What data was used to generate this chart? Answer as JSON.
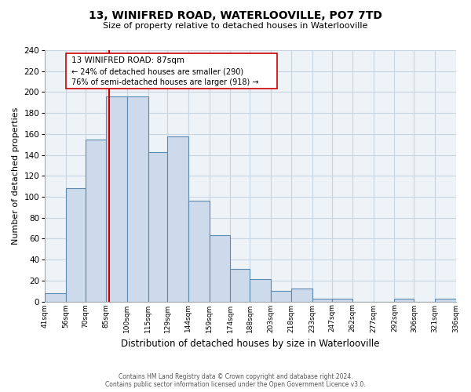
{
  "title": "13, WINIFRED ROAD, WATERLOOVILLE, PO7 7TD",
  "subtitle": "Size of property relative to detached houses in Waterlooville",
  "xlabel": "Distribution of detached houses by size in Waterlooville",
  "ylabel": "Number of detached properties",
  "bin_labels": [
    "41sqm",
    "56sqm",
    "70sqm",
    "85sqm",
    "100sqm",
    "115sqm",
    "129sqm",
    "144sqm",
    "159sqm",
    "174sqm",
    "188sqm",
    "203sqm",
    "218sqm",
    "233sqm",
    "247sqm",
    "262sqm",
    "277sqm",
    "292sqm",
    "306sqm",
    "321sqm",
    "336sqm"
  ],
  "bin_edges": [
    41,
    56,
    70,
    85,
    100,
    115,
    129,
    144,
    159,
    174,
    188,
    203,
    218,
    233,
    247,
    262,
    277,
    292,
    306,
    321,
    336
  ],
  "bar_heights": [
    8,
    108,
    155,
    196,
    196,
    143,
    158,
    96,
    63,
    31,
    21,
    10,
    12,
    3,
    3,
    0,
    0,
    3,
    0,
    3,
    0
  ],
  "bar_color": "#ccdaeb",
  "bar_edge_color": "#5c8ab0",
  "property_size": 87,
  "property_line_color": "#cc0000",
  "annotation_title": "13 WINIFRED ROAD: 87sqm",
  "annotation_line1": "← 24% of detached houses are smaller (290)",
  "annotation_line2": "76% of semi-detached houses are larger (918) →",
  "annotation_box_edge_color": "#cc0000",
  "ylim": [
    0,
    240
  ],
  "yticks": [
    0,
    20,
    40,
    60,
    80,
    100,
    120,
    140,
    160,
    180,
    200,
    220,
    240
  ],
  "footer1": "Contains HM Land Registry data © Crown copyright and database right 2024.",
  "footer2": "Contains public sector information licensed under the Open Government Licence v3.0.",
  "bg_color": "#ffffff",
  "grid_color": "#c8d4e0"
}
